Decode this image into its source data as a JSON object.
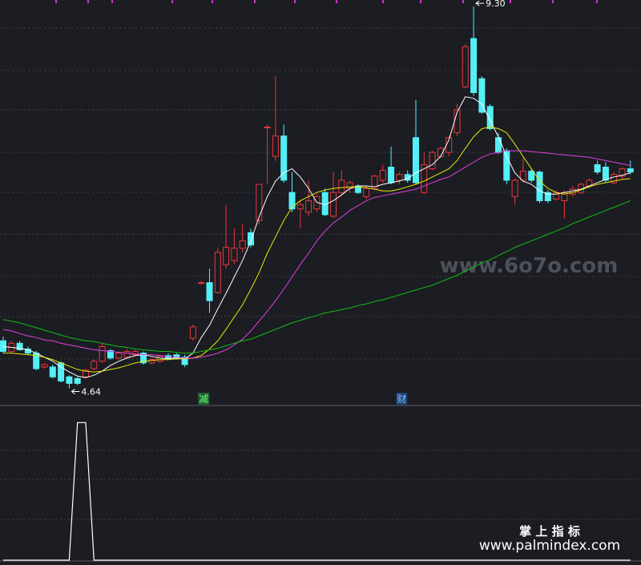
{
  "chart_data": {
    "type": "candlestick",
    "ylim": [
      4.44,
      9.38
    ],
    "up_color": "#e8383a",
    "down_color": "#54f0f8",
    "open": [
      5.22,
      5.09,
      5.19,
      5.12,
      5.07,
      4.9,
      4.9,
      4.95,
      4.78,
      4.76,
      4.78,
      4.88,
      4.97,
      5.1,
      5.01,
      5.02,
      5.05,
      5.07,
      4.95,
      4.97,
      5.04,
      5.05,
      5.02,
      5.25,
      5.93,
      5.93,
      5.81,
      6.15,
      6.2,
      6.35,
      6.54,
      6.69,
      7.83,
      7.47,
      7.72,
      7.03,
      6.83,
      6.79,
      6.83,
      7.03,
      6.74,
      7.03,
      7.08,
      7.11,
      6.98,
      7.08,
      7.18,
      7.34,
      7.18,
      7.25,
      7.7,
      7.03,
      7.32,
      7.47,
      7.52,
      7.76,
      8.32,
      8.91,
      8.42,
      8.08,
      7.7,
      7.54,
      6.98,
      7.18,
      7.29,
      7.28,
      7.03,
      6.95,
      6.93,
      7.01,
      7.03,
      7.11,
      7.37,
      7.34,
      7.15,
      7.23,
      7.32
    ],
    "high": [
      5.27,
      5.22,
      5.22,
      5.15,
      5.1,
      4.95,
      4.93,
      4.97,
      4.8,
      4.78,
      4.88,
      4.99,
      5.19,
      5.12,
      5.09,
      5.12,
      5.11,
      5.09,
      5.01,
      5.05,
      5.07,
      5.07,
      5.05,
      5.42,
      5.95,
      6.1,
      6.35,
      6.88,
      6.59,
      6.64,
      6.59,
      7.13,
      7.86,
      8.45,
      7.86,
      7.28,
      6.93,
      7.18,
      7.01,
      7.08,
      7.28,
      7.3,
      7.18,
      7.13,
      7.11,
      7.25,
      7.37,
      7.59,
      7.28,
      7.3,
      8.16,
      7.52,
      7.54,
      7.59,
      7.72,
      8.11,
      8.84,
      9.3,
      8.45,
      8.11,
      7.76,
      7.57,
      7.2,
      7.45,
      7.32,
      7.3,
      7.06,
      7.06,
      7.06,
      7.11,
      7.15,
      7.2,
      7.42,
      7.4,
      7.28,
      7.34,
      7.42
    ],
    "low": [
      5.07,
      5.07,
      5.1,
      5.05,
      4.86,
      4.88,
      4.76,
      4.71,
      4.64,
      4.68,
      4.76,
      4.86,
      4.95,
      4.99,
      4.99,
      5.0,
      5.03,
      4.93,
      4.93,
      4.95,
      4.99,
      4.99,
      4.9,
      5.22,
      5.91,
      5.56,
      5.79,
      6.1,
      6.15,
      6.3,
      6.36,
      6.64,
      7.13,
      7.42,
      7.15,
      6.79,
      6.59,
      6.74,
      6.79,
      6.74,
      6.72,
      7.01,
      7.03,
      7.01,
      6.95,
      7.06,
      7.15,
      7.13,
      7.13,
      7.15,
      7.13,
      7.01,
      7.3,
      7.45,
      7.47,
      7.72,
      8.3,
      8.21,
      7.99,
      7.79,
      7.5,
      7.13,
      6.88,
      7.15,
      7.15,
      6.9,
      6.9,
      6.93,
      6.72,
      6.98,
      7.01,
      7.08,
      7.25,
      7.15,
      7.13,
      7.2,
      7.25
    ],
    "close": [
      5.09,
      5.19,
      5.11,
      5.07,
      4.88,
      4.93,
      4.78,
      4.73,
      4.7,
      4.7,
      4.86,
      4.97,
      5.15,
      5.01,
      5.07,
      5.09,
      5.09,
      4.95,
      4.99,
      5.03,
      5.0,
      5.0,
      4.93,
      5.39,
      5.93,
      5.71,
      6.3,
      6.36,
      6.35,
      6.44,
      6.39,
      7.13,
      7.83,
      7.72,
      7.18,
      6.83,
      6.88,
      6.93,
      6.98,
      6.76,
      7.03,
      7.18,
      7.15,
      7.03,
      7.08,
      7.23,
      7.3,
      7.15,
      7.25,
      7.18,
      7.15,
      7.37,
      7.52,
      7.57,
      7.7,
      8.04,
      8.81,
      8.25,
      8.01,
      7.81,
      7.52,
      7.18,
      7.18,
      7.29,
      7.18,
      6.93,
      6.93,
      7.03,
      7.03,
      7.07,
      7.13,
      7.18,
      7.28,
      7.18,
      7.25,
      7.32,
      7.28
    ],
    "series": [
      {
        "color": "#ffffff",
        "values": [
          5.15,
          5.14,
          5.13,
          5.11,
          5.07,
          5.02,
          4.97,
          4.9,
          4.84,
          4.79,
          4.77,
          4.8,
          4.85,
          4.92,
          4.97,
          5.01,
          5.04,
          5.05,
          5.03,
          5.01,
          5.0,
          5.01,
          5.0,
          5.07,
          5.26,
          5.41,
          5.61,
          5.8,
          6.0,
          6.2,
          6.44,
          6.73,
          6.98,
          7.17,
          7.27,
          7.32,
          7.22,
          7.08,
          6.91,
          6.88,
          6.93,
          7.0,
          7.08,
          7.11,
          7.11,
          7.1,
          7.13,
          7.15,
          7.17,
          7.2,
          7.27,
          7.32,
          7.37,
          7.47,
          7.67,
          8.01,
          8.2,
          8.18,
          8.11,
          7.91,
          7.71,
          7.47,
          7.27,
          7.17,
          7.13,
          7.05,
          7.01,
          7.01,
          7.03,
          7.05,
          7.07,
          7.11,
          7.15,
          7.19,
          7.22,
          7.24,
          7.27
        ]
      },
      {
        "color": "#e8e800",
        "values": [
          5.07,
          5.07,
          5.06,
          5.05,
          5.04,
          5.02,
          4.99,
          4.95,
          4.91,
          4.87,
          4.85,
          4.84,
          4.85,
          4.87,
          4.89,
          4.92,
          4.95,
          4.97,
          4.98,
          4.99,
          4.99,
          5.0,
          5.0,
          5.01,
          5.04,
          5.12,
          5.22,
          5.36,
          5.51,
          5.66,
          5.85,
          6.05,
          6.29,
          6.49,
          6.69,
          6.85,
          6.93,
          6.98,
          7.03,
          7.06,
          7.08,
          7.09,
          7.1,
          7.1,
          7.09,
          7.07,
          7.05,
          7.05,
          7.07,
          7.1,
          7.13,
          7.17,
          7.22,
          7.27,
          7.32,
          7.42,
          7.57,
          7.71,
          7.81,
          7.83,
          7.81,
          7.76,
          7.62,
          7.47,
          7.32,
          7.17,
          7.08,
          7.03,
          7.01,
          7.03,
          7.06,
          7.1,
          7.13,
          7.15,
          7.17,
          7.19,
          7.2
        ]
      },
      {
        "color": "#e040e0",
        "values": [
          5.36,
          5.34,
          5.31,
          5.28,
          5.26,
          5.23,
          5.22,
          5.19,
          5.17,
          5.15,
          5.13,
          5.11,
          5.1,
          5.09,
          5.08,
          5.07,
          5.06,
          5.05,
          5.05,
          5.04,
          5.03,
          5.02,
          5.01,
          5.01,
          5.02,
          5.04,
          5.07,
          5.11,
          5.17,
          5.24,
          5.34,
          5.46,
          5.58,
          5.71,
          5.85,
          6.0,
          6.15,
          6.29,
          6.44,
          6.56,
          6.66,
          6.73,
          6.81,
          6.87,
          6.93,
          6.97,
          6.99,
          7.01,
          7.03,
          7.05,
          7.07,
          7.11,
          7.15,
          7.19,
          7.22,
          7.28,
          7.34,
          7.4,
          7.46,
          7.5,
          7.52,
          7.54,
          7.54,
          7.54,
          7.53,
          7.52,
          7.51,
          7.5,
          7.49,
          7.48,
          7.47,
          7.46,
          7.44,
          7.42,
          7.4,
          7.38,
          7.36
        ]
      },
      {
        "color": "#10c010",
        "values": [
          5.48,
          5.46,
          5.44,
          5.41,
          5.38,
          5.35,
          5.32,
          5.29,
          5.26,
          5.24,
          5.22,
          5.21,
          5.19,
          5.17,
          5.15,
          5.14,
          5.12,
          5.11,
          5.1,
          5.09,
          5.09,
          5.08,
          5.07,
          5.07,
          5.09,
          5.11,
          5.13,
          5.16,
          5.19,
          5.22,
          5.24,
          5.28,
          5.32,
          5.36,
          5.4,
          5.44,
          5.47,
          5.5,
          5.53,
          5.56,
          5.58,
          5.6,
          5.62,
          5.65,
          5.67,
          5.7,
          5.72,
          5.75,
          5.78,
          5.81,
          5.84,
          5.87,
          5.9,
          5.94,
          5.98,
          6.02,
          6.07,
          6.12,
          6.17,
          6.21,
          6.26,
          6.31,
          6.36,
          6.4,
          6.44,
          6.48,
          6.52,
          6.56,
          6.6,
          6.65,
          6.69,
          6.73,
          6.77,
          6.81,
          6.85,
          6.89,
          6.93
        ]
      }
    ],
    "annotations": [
      {
        "value": 9.3,
        "label": "9.30"
      },
      {
        "value": 4.64,
        "label": "4.64"
      }
    ],
    "signals": [
      null,
      null,
      null,
      null,
      null,
      null,
      null,
      null,
      null,
      null,
      null,
      null,
      null,
      null,
      null,
      null,
      null,
      null,
      null,
      null,
      null,
      null,
      null,
      null,
      "减",
      null,
      null,
      null,
      null,
      null,
      null,
      null,
      null,
      null,
      null,
      null,
      null,
      null,
      null,
      null,
      null,
      null,
      null,
      null,
      null,
      null,
      null,
      null,
      "财",
      null,
      null,
      null,
      null,
      null,
      null,
      null,
      null,
      null,
      null,
      null,
      null,
      null,
      null,
      null,
      null,
      null,
      null,
      null,
      null,
      null,
      null,
      null,
      null,
      null,
      null,
      null,
      null
    ],
    "indicator": {
      "color": "#ffffff",
      "ylim": [
        0,
        1.13
      ],
      "values": [
        0,
        0,
        0,
        0,
        0,
        0,
        0,
        0,
        0,
        1,
        1,
        0,
        0,
        0,
        0,
        0,
        0,
        0,
        0,
        0,
        0,
        0,
        0,
        0,
        0,
        0,
        0,
        0,
        0,
        0,
        0,
        0,
        0,
        0,
        0,
        0,
        0,
        0,
        0,
        0,
        0,
        0,
        0,
        0,
        0,
        0,
        0,
        0,
        0,
        0,
        0,
        0,
        0,
        0,
        0,
        0,
        0,
        0,
        0,
        0,
        0,
        0,
        0,
        0,
        0,
        0,
        0,
        0,
        0,
        0,
        0,
        0,
        0,
        0,
        0,
        0,
        0
      ]
    }
  },
  "watermark": "www.6o7o.com",
  "footer": {
    "title": "掌 上 指 标",
    "url": "www.palmindex.com"
  }
}
